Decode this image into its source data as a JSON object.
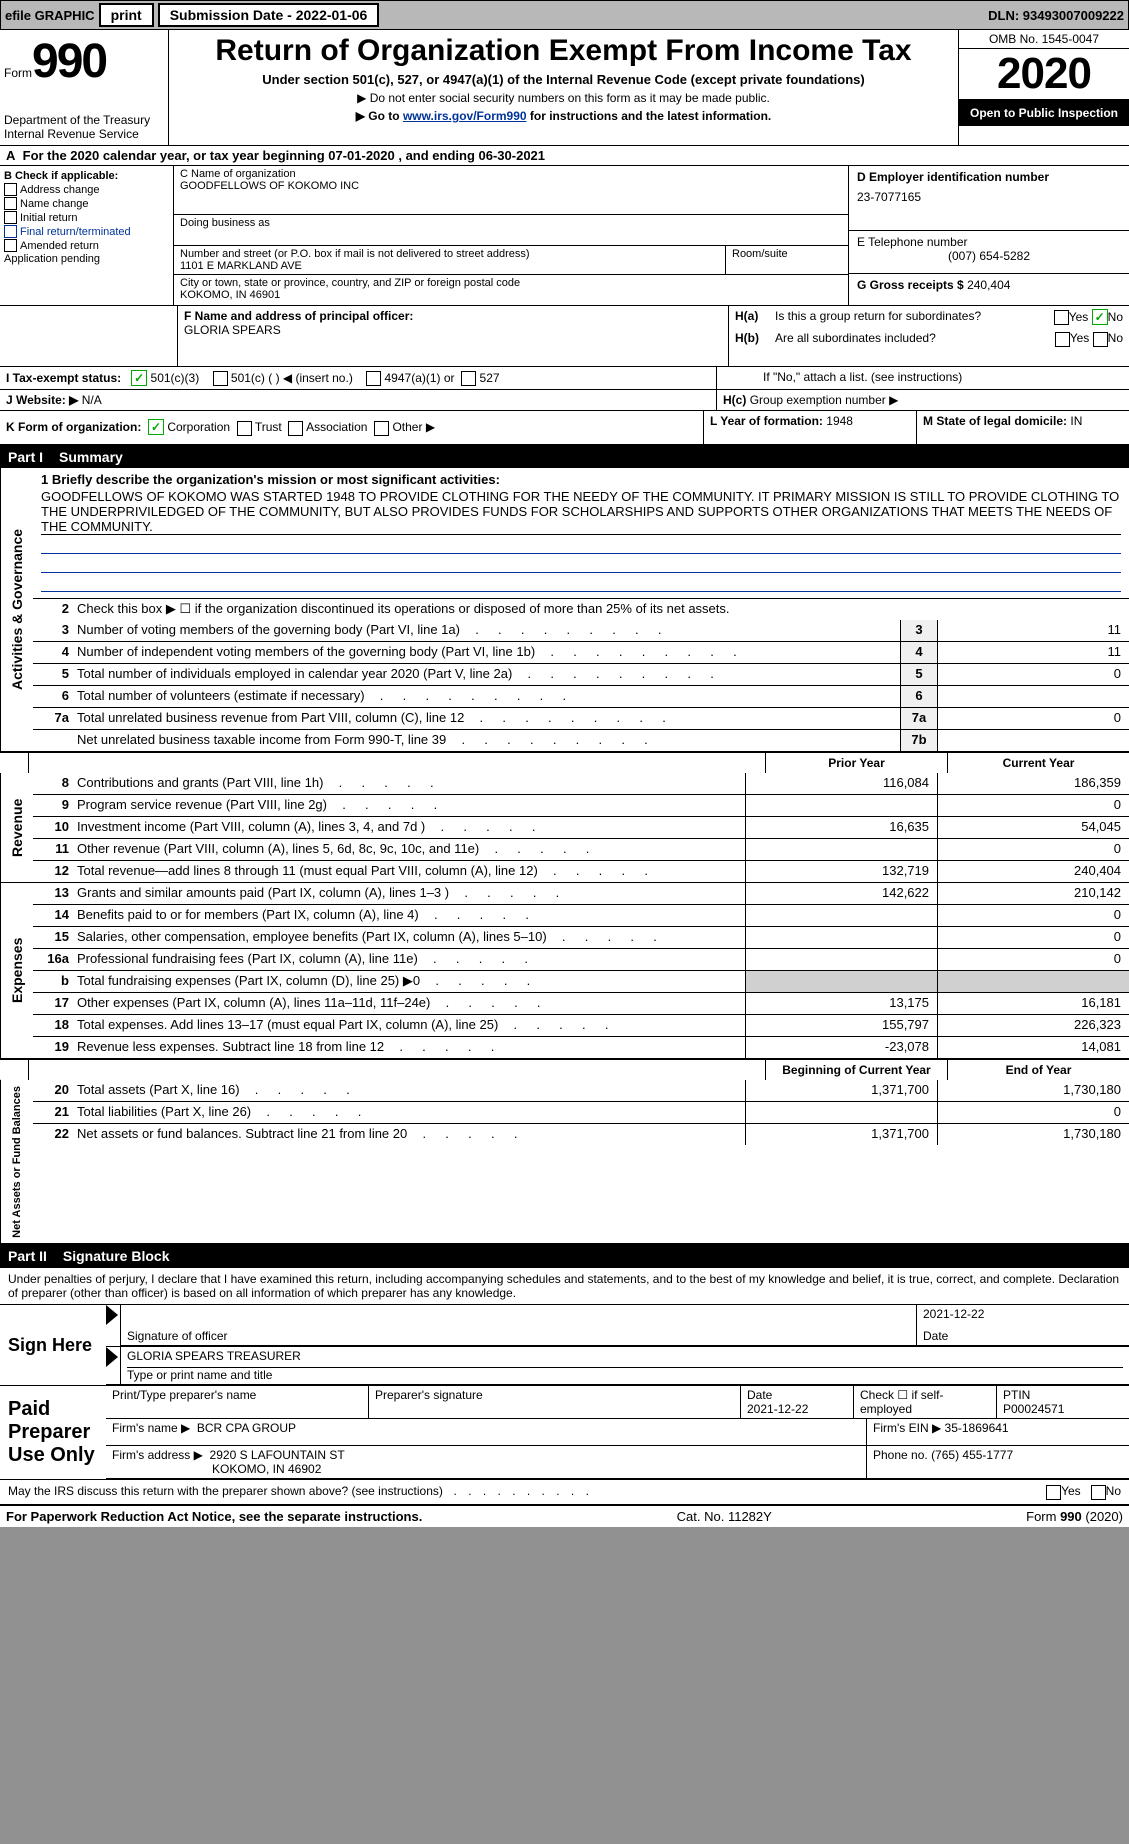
{
  "top_bar": {
    "efile_label": "efile GRAPHIC",
    "print_btn": "print",
    "submission_label": "Submission Date - 2022-01-06",
    "dln_label": "DLN: 93493007009222"
  },
  "header": {
    "form_label": "Form",
    "form_number": "990",
    "dept": "Department of the Treasury\nInternal Revenue Service",
    "title": "Return of Organization Exempt From Income Tax",
    "subtitle": "Under section 501(c), 527, or 4947(a)(1) of the Internal Revenue Code (except private foundations)",
    "note1": "▶ Do not enter social security numbers on this form as it may be made public.",
    "note2_pre": "▶ Go to ",
    "note2_link": "www.irs.gov/Form990",
    "note2_post": " for instructions and the latest information.",
    "omb": "OMB No. 1545-0047",
    "year": "2020",
    "badge": "Open to Public Inspection"
  },
  "section_a": {
    "line": "For the 2020 calendar year, or tax year beginning 07-01-2020    , and ending 06-30-2021"
  },
  "section_b": {
    "label": "B Check if applicable:",
    "items": [
      "Address change",
      "Name change",
      "Initial return",
      "Final return/terminated",
      "Amended return",
      "Application pending"
    ]
  },
  "section_c": {
    "name_label": "C Name of organization",
    "name": "GOODFELLOWS OF KOKOMO INC",
    "dba_label": "Doing business as",
    "dba": "",
    "addr_label": "Number and street (or P.O. box if mail is not delivered to street address)",
    "addr": "1101 E MARKLAND AVE",
    "room_label": "Room/suite",
    "city_label": "City or town, state or province, country, and ZIP or foreign postal code",
    "city": "KOKOMO, IN  46901"
  },
  "section_d": {
    "label": "D Employer identification number",
    "ein": "23-7077165"
  },
  "section_e": {
    "label": "E Telephone number",
    "phone": "(007) 654-5282"
  },
  "section_g": {
    "label": "G Gross receipts $",
    "amount": "240,404"
  },
  "section_f": {
    "label": "F  Name and address of principal officer:",
    "name": "GLORIA SPEARS"
  },
  "section_h": {
    "a_label": "H(a)",
    "a_text": "Is this a group return for subordinates?",
    "b_label": "H(b)",
    "b_text": "Are all subordinates included?",
    "b_note": "If \"No,\" attach a list. (see instructions)",
    "c_label": "H(c)",
    "c_text": "Group exemption number ▶",
    "yes": "Yes",
    "no": "No"
  },
  "section_i": {
    "label": "I   Tax-exempt status:",
    "opts": [
      "501(c)(3)",
      "501(c) (  ) ◀ (insert no.)",
      "4947(a)(1) or",
      "527"
    ]
  },
  "section_j": {
    "label": "J   Website: ▶",
    "value": "N/A"
  },
  "section_k": {
    "label": "K Form of organization:",
    "opts": [
      "Corporation",
      "Trust",
      "Association",
      "Other ▶"
    ]
  },
  "section_l": {
    "label": "L Year of formation:",
    "value": "1948"
  },
  "section_m": {
    "label": "M State of legal domicile:",
    "value": "IN"
  },
  "part1": {
    "label": "Part I",
    "title": "Summary",
    "line1_label": "1  Briefly describe the organization's mission or most significant activities:",
    "mission": "GOODFELLOWS OF KOKOMO WAS STARTED 1948 TO PROVIDE CLOTHING FOR THE NEEDY OF THE COMMUNITY. IT PRIMARY MISSION IS STILL TO PROVIDE CLOTHING TO THE UNDERPRIVILEDGED OF THE COMMUNITY, BUT ALSO PROVIDES FUNDS FOR SCHOLARSHIPS AND SUPPORTS OTHER ORGANIZATIONS THAT MEETS THE NEEDS OF THE COMMUNITY.",
    "side_label_ag": "Activities & Governance",
    "line2": "Check this box ▶ ☐  if the organization discontinued its operations or disposed of more than 25% of its net assets.",
    "lines_ag": [
      {
        "n": "3",
        "t": "Number of voting members of the governing body (Part VI, line 1a)",
        "box": "3",
        "v": "11"
      },
      {
        "n": "4",
        "t": "Number of independent voting members of the governing body (Part VI, line 1b)",
        "box": "4",
        "v": "11"
      },
      {
        "n": "5",
        "t": "Total number of individuals employed in calendar year 2020 (Part V, line 2a)",
        "box": "5",
        "v": "0"
      },
      {
        "n": "6",
        "t": "Total number of volunteers (estimate if necessary)",
        "box": "6",
        "v": ""
      },
      {
        "n": "7a",
        "t": "Total unrelated business revenue from Part VIII, column (C), line 12",
        "box": "7a",
        "v": "0"
      },
      {
        "n": "",
        "t": "Net unrelated business taxable income from Form 990-T, line 39",
        "box": "7b",
        "v": ""
      }
    ],
    "hdr_prior": "Prior Year",
    "hdr_current": "Current Year",
    "side_label_rev": "Revenue",
    "lines_rev": [
      {
        "n": "8",
        "t": "Contributions and grants (Part VIII, line 1h)",
        "p": "116,084",
        "c": "186,359"
      },
      {
        "n": "9",
        "t": "Program service revenue (Part VIII, line 2g)",
        "p": "",
        "c": "0"
      },
      {
        "n": "10",
        "t": "Investment income (Part VIII, column (A), lines 3, 4, and 7d )",
        "p": "16,635",
        "c": "54,045"
      },
      {
        "n": "11",
        "t": "Other revenue (Part VIII, column (A), lines 5, 6d, 8c, 9c, 10c, and 11e)",
        "p": "",
        "c": "0"
      },
      {
        "n": "12",
        "t": "Total revenue—add lines 8 through 11 (must equal Part VIII, column (A), line 12)",
        "p": "132,719",
        "c": "240,404"
      }
    ],
    "side_label_exp": "Expenses",
    "lines_exp": [
      {
        "n": "13",
        "t": "Grants and similar amounts paid (Part IX, column (A), lines 1–3 )",
        "p": "142,622",
        "c": "210,142"
      },
      {
        "n": "14",
        "t": "Benefits paid to or for members (Part IX, column (A), line 4)",
        "p": "",
        "c": "0"
      },
      {
        "n": "15",
        "t": "Salaries, other compensation, employee benefits (Part IX, column (A), lines 5–10)",
        "p": "",
        "c": "0"
      },
      {
        "n": "16a",
        "t": "Professional fundraising fees (Part IX, column (A), line 11e)",
        "p": "",
        "c": "0"
      },
      {
        "n": "b",
        "t": "Total fundraising expenses (Part IX, column (D), line 25) ▶0",
        "p": "grey",
        "c": "grey"
      },
      {
        "n": "17",
        "t": "Other expenses (Part IX, column (A), lines 11a–11d, 11f–24e)",
        "p": "13,175",
        "c": "16,181"
      },
      {
        "n": "18",
        "t": "Total expenses. Add lines 13–17 (must equal Part IX, column (A), line 25)",
        "p": "155,797",
        "c": "226,323"
      },
      {
        "n": "19",
        "t": "Revenue less expenses. Subtract line 18 from line 12",
        "p": "-23,078",
        "c": "14,081"
      }
    ],
    "hdr_boy": "Beginning of Current Year",
    "hdr_eoy": "End of Year",
    "side_label_net": "Net Assets or Fund Balances",
    "lines_net": [
      {
        "n": "20",
        "t": "Total assets (Part X, line 16)",
        "p": "1,371,700",
        "c": "1,730,180"
      },
      {
        "n": "21",
        "t": "Total liabilities (Part X, line 26)",
        "p": "",
        "c": "0"
      },
      {
        "n": "22",
        "t": "Net assets or fund balances. Subtract line 21 from line 20",
        "p": "1,371,700",
        "c": "1,730,180"
      }
    ]
  },
  "part2": {
    "label": "Part II",
    "title": "Signature Block",
    "intro": "Under penalties of perjury, I declare that I have examined this return, including accompanying schedules and statements, and to the best of my knowledge and belief, it is true, correct, and complete. Declaration of preparer (other than officer) is based on all information of which preparer has any knowledge.",
    "sign_here": "Sign Here",
    "sig_officer": "Signature of officer",
    "sig_date": "2021-12-22",
    "date_label": "Date",
    "officer_name": "GLORIA SPEARS  TREASURER",
    "type_name_label": "Type or print name and title",
    "paid_label": "Paid Preparer Use Only",
    "prep_name_label": "Print/Type preparer's name",
    "prep_sig_label": "Preparer's signature",
    "prep_date_label": "Date",
    "prep_date": "2021-12-22",
    "check_self": "Check ☐ if self-employed",
    "ptin_label": "PTIN",
    "ptin": "P00024571",
    "firm_name_label": "Firm's name    ▶",
    "firm_name": "BCR CPA GROUP",
    "firm_ein_label": "Firm's EIN ▶",
    "firm_ein": "35-1869641",
    "firm_addr_label": "Firm's address ▶",
    "firm_addr1": "2920 S LAFOUNTAIN ST",
    "firm_addr2": "KOKOMO, IN  46902",
    "phone_label": "Phone no.",
    "phone": "(765) 455-1777",
    "discuss": "May the IRS discuss this return with the preparer shown above? (see instructions)",
    "yes": "Yes",
    "no": "No"
  },
  "footer": {
    "pra": "For Paperwork Reduction Act Notice, see the separate instructions.",
    "cat": "Cat. No. 11282Y",
    "form": "Form 990 (2020)"
  },
  "colors": {
    "link": "#003399",
    "green": "#00aa00",
    "grey_bg": "#b8b8b8",
    "shade": "#d0d0d0"
  }
}
